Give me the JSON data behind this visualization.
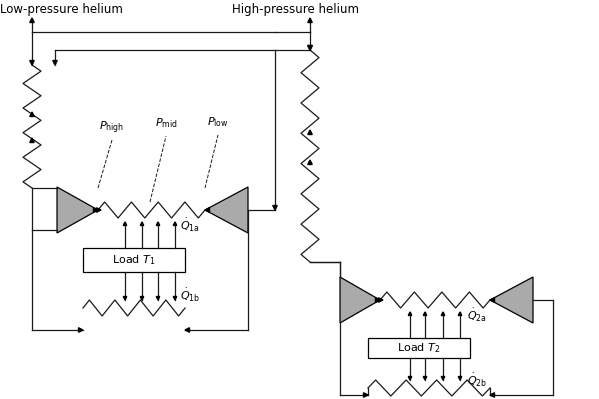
{
  "bg_color": "#ffffff",
  "line_color": "#1a1a1a",
  "component_color": "#aaaaaa",
  "figsize": [
    5.99,
    3.99
  ],
  "dpi": 100
}
